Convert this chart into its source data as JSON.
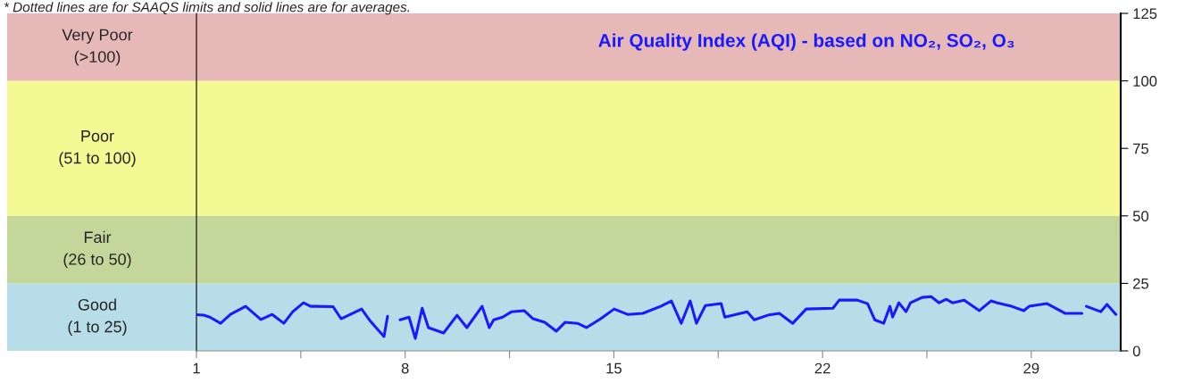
{
  "chart_data": {
    "type": "line",
    "title": "Air Quality Index (AQI) - based on NO₂, SO₂, O₃",
    "annotations": [
      "* Dotted lines are for SAAQS limits and solid lines are for averages."
    ],
    "series": [
      {
        "color": "#1a1aff",
        "x": [
          1.0,
          1.24,
          1.45,
          1.81,
          2.14,
          2.65,
          3.16,
          3.54,
          3.93,
          4.23,
          4.59,
          4.83,
          5.04,
          5.58,
          5.85,
          6.54,
          6.84,
          7.29,
          7.41,
          7.6,
          7.83,
          8.13,
          8.34,
          8.57,
          8.78,
          9.29,
          9.74,
          10.07,
          10.58,
          10.82,
          10.97,
          11.27,
          11.57,
          11.99,
          12.29,
          12.68,
          13.07,
          13.37,
          13.78,
          14.08,
          14.56,
          15.01,
          15.46,
          15.97,
          16.57,
          16.93,
          17.26,
          17.56,
          17.77,
          18.07,
          18.6,
          18.72,
          19.47,
          19.71,
          20.16,
          20.55,
          21.0,
          21.45,
          22.35,
          22.56,
          23.16,
          23.51,
          23.75,
          24.05,
          24.26,
          24.35,
          24.56,
          24.8,
          24.95,
          25.34,
          25.64,
          25.91,
          26.15,
          26.36,
          26.75,
          27.26,
          27.65,
          27.86,
          28.34,
          28.75,
          28.93,
          29.53,
          30.13,
          30.7,
          30.78,
          30.85,
          31.33,
          31.54,
          31.84
        ],
        "values": [
          13.4,
          13.2,
          12.5,
          10.2,
          13.5,
          16.5,
          11.6,
          13.5,
          10.2,
          14.5,
          17.8,
          16.5,
          16.5,
          16.4,
          11.9,
          15.5,
          10.9,
          5.3,
          12.8,
          null,
          11.5,
          12.5,
          4.6,
          15.8,
          8.6,
          6.6,
          13.2,
          8.6,
          16.5,
          8.6,
          11.5,
          12.5,
          14.5,
          14.9,
          11.9,
          10.6,
          7.3,
          10.6,
          10.2,
          8.6,
          11.9,
          15.5,
          13.5,
          13.9,
          16.5,
          18.5,
          10.2,
          18.5,
          10.2,
          16.8,
          17.5,
          12.5,
          14.5,
          11.5,
          13.2,
          13.9,
          10.2,
          15.5,
          15.8,
          18.8,
          18.8,
          17.5,
          11.5,
          10.2,
          16.5,
          12.5,
          17.8,
          14.5,
          17.8,
          19.8,
          20.1,
          17.8,
          19.1,
          17.8,
          18.8,
          14.9,
          18.5,
          17.8,
          16.5,
          14.9,
          16.5,
          17.5,
          13.9,
          13.9,
          null,
          16.5,
          14.5,
          17.2,
          13.5
        ]
      }
    ],
    "bands": [
      {
        "axis": "y",
        "from": 0,
        "to": 25,
        "label": "Good\n(1 to 25)",
        "color": "#b7dde8"
      },
      {
        "axis": "y",
        "from": 25,
        "to": 50,
        "label": "Fair\n(26 to 50)",
        "color": "#c4d79b"
      },
      {
        "axis": "y",
        "from": 50,
        "to": 100,
        "label": "Poor\n(51 to 100)",
        "color": "#f5f993"
      },
      {
        "axis": "y",
        "from": 100,
        "to": 125,
        "label": "Very Poor\n(>100)",
        "color": "#e6b8b7"
      }
    ],
    "xlim": [
      1,
      32
    ],
    "xticks": [
      1,
      {
        "value": 4.5,
        "label": null
      },
      8,
      {
        "value": 11.5,
        "label": null
      },
      15,
      {
        "value": 18.5,
        "label": null
      },
      22,
      {
        "value": 25.5,
        "label": null
      },
      29
    ],
    "ylim": [
      0,
      125
    ],
    "yticks": [
      0,
      25,
      50,
      75,
      100,
      125
    ],
    "grid": false,
    "legend": false,
    "marker": "none",
    "line_style": "solid"
  }
}
